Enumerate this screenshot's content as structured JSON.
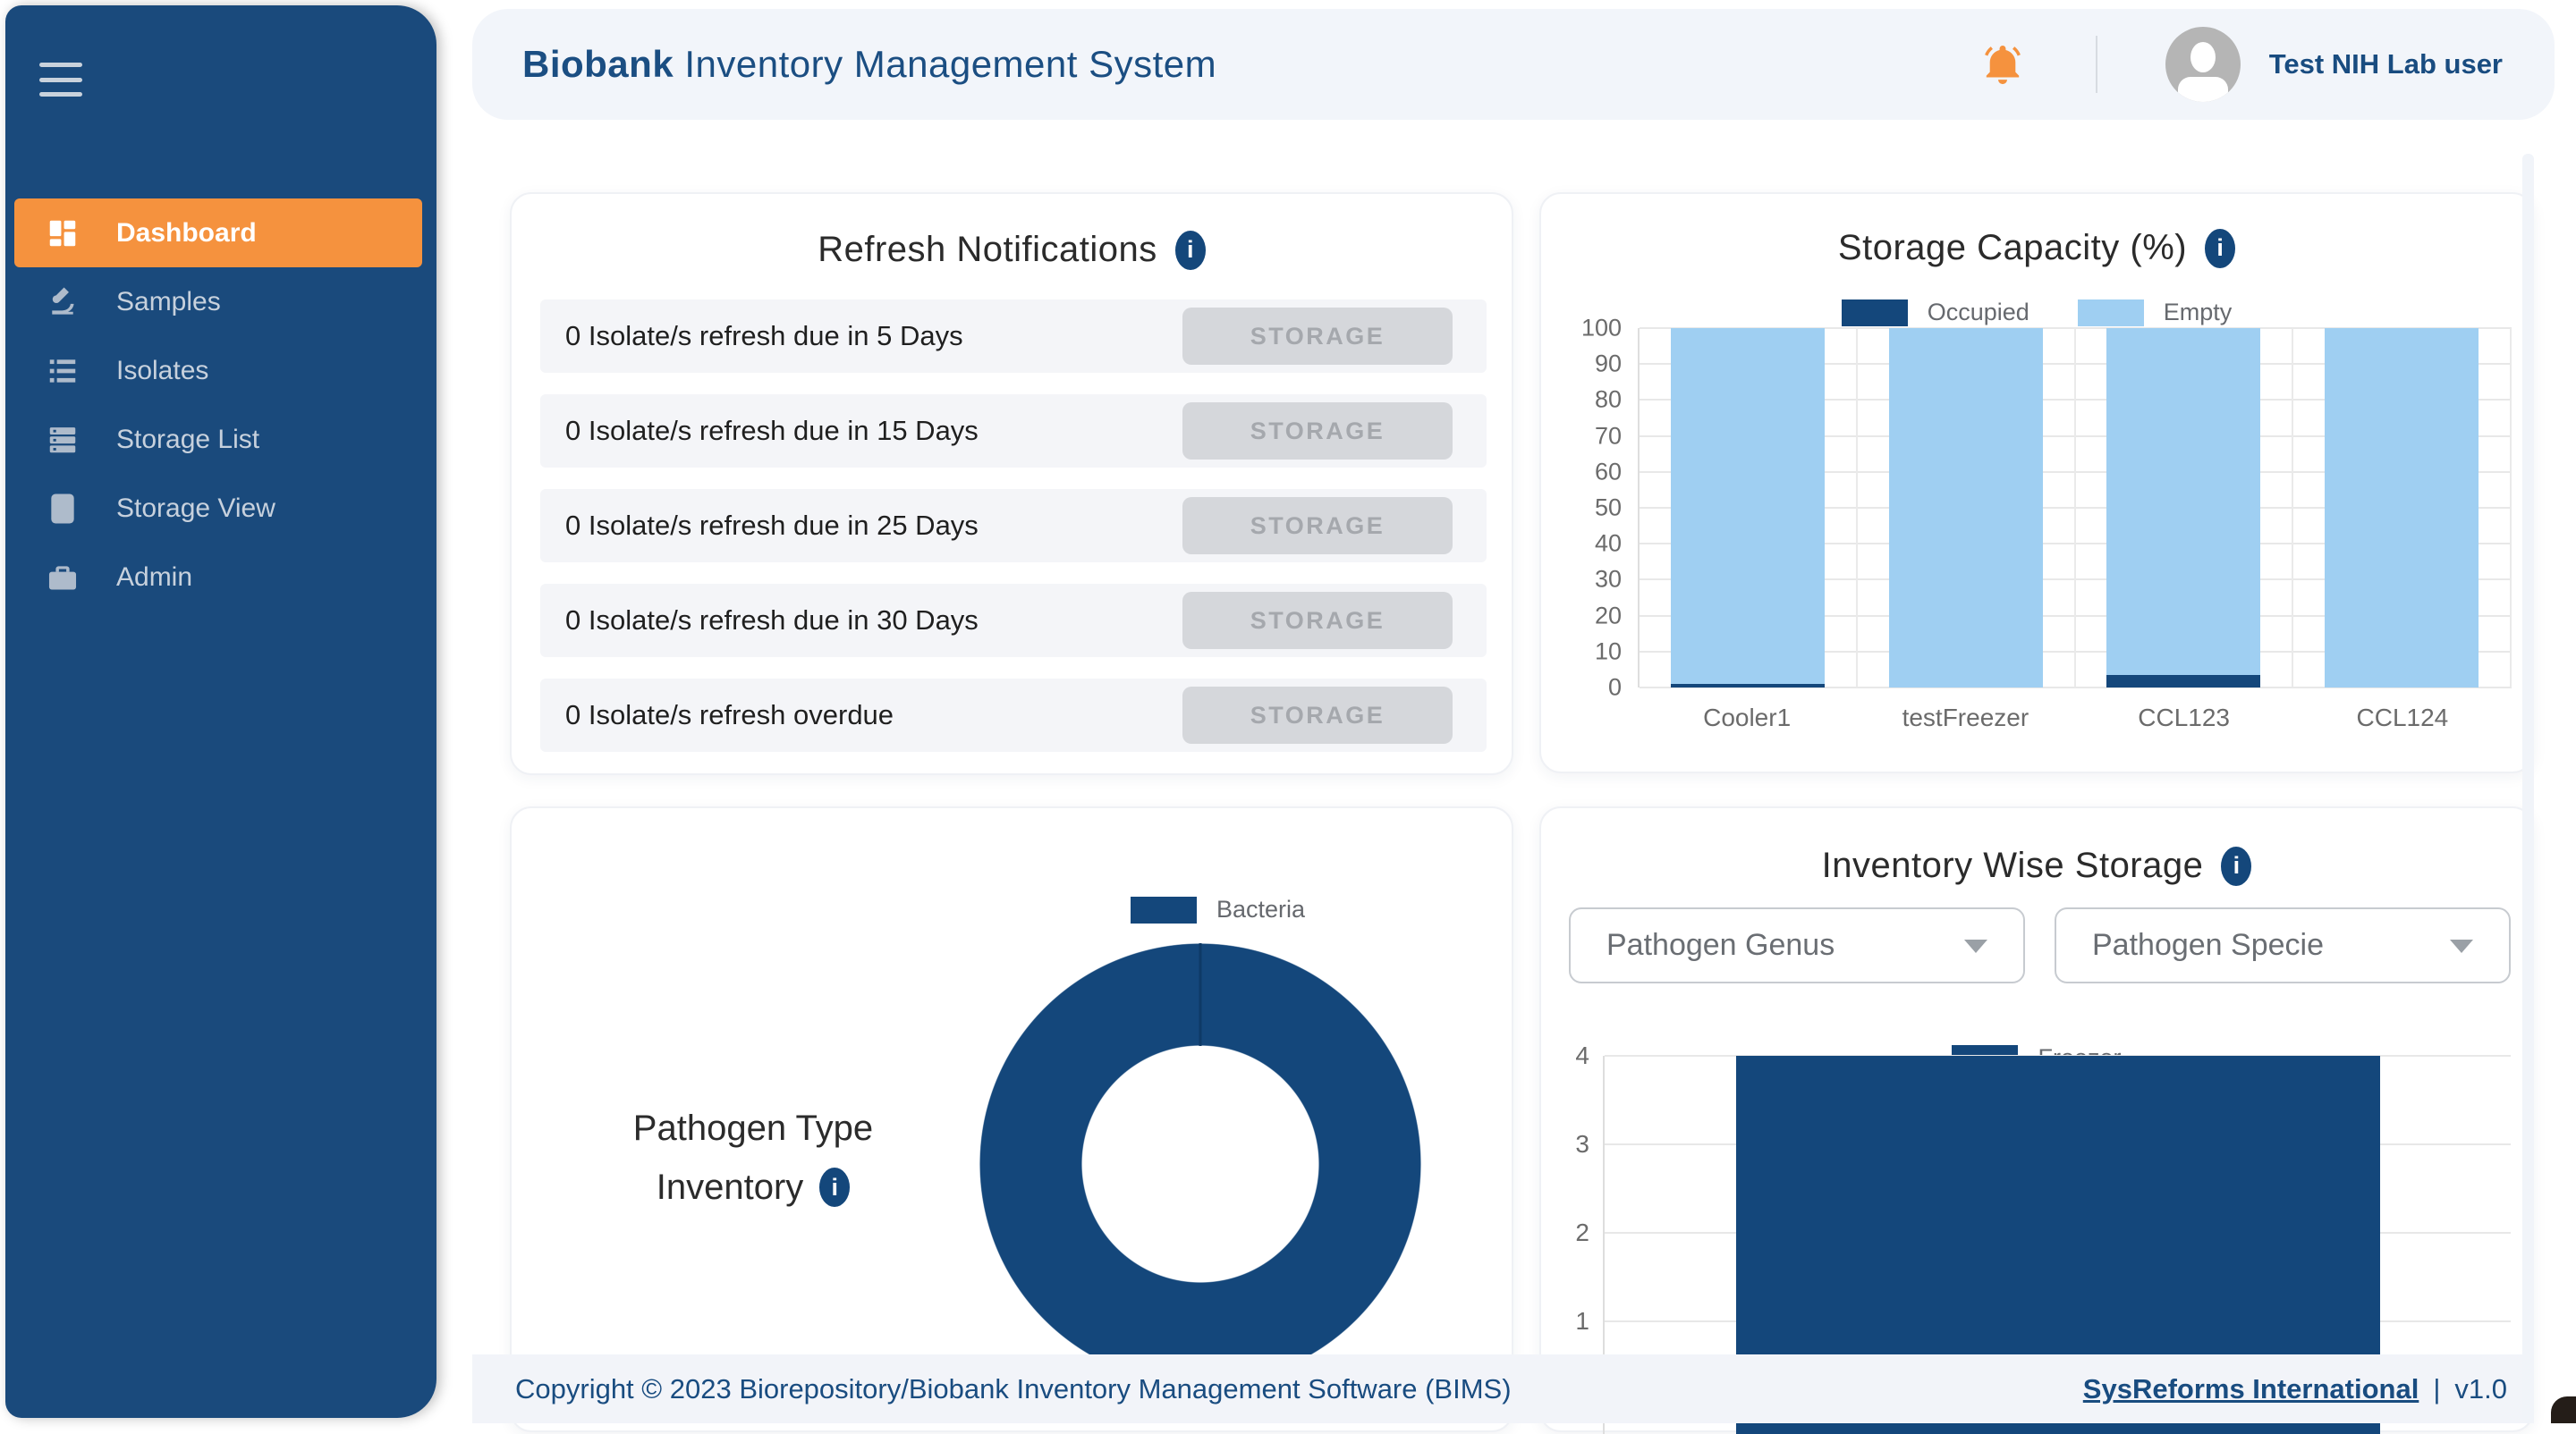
{
  "app": {
    "title_bold": "Biobank",
    "title_rest": " Inventory Management System",
    "user_name": "Test NIH Lab user"
  },
  "sidebar": {
    "items": [
      {
        "label": "Dashboard",
        "active": true
      },
      {
        "label": "Samples",
        "active": false
      },
      {
        "label": "Isolates",
        "active": false
      },
      {
        "label": "Storage List",
        "active": false
      },
      {
        "label": "Storage View",
        "active": false
      },
      {
        "label": "Admin",
        "active": false
      }
    ]
  },
  "notifications": {
    "title": "Refresh Notifications",
    "rows": [
      {
        "text": "0 Isolate/s refresh due in 5 Days",
        "button": "STORAGE"
      },
      {
        "text": "0 Isolate/s refresh due in 15 Days",
        "button": "STORAGE"
      },
      {
        "text": "0 Isolate/s refresh due in 25 Days",
        "button": "STORAGE"
      },
      {
        "text": "0 Isolate/s refresh due in 30 Days",
        "button": "STORAGE"
      },
      {
        "text": "0 Isolate/s refresh overdue",
        "button": "STORAGE"
      }
    ]
  },
  "capacity_card": {
    "title": "Storage Capacity (%)"
  },
  "pathogen_card": {
    "title_line1": "Pathogen Type",
    "title_line2": "Inventory"
  },
  "inventory_card": {
    "title": "Inventory Wise Storage",
    "filters": [
      {
        "label": "Pathogen Genus"
      },
      {
        "label": "Pathogen Specie"
      }
    ]
  },
  "footer": {
    "copyright": "Copyright © 2023 Biorepository/Biobank Inventory Management Software (BIMS)",
    "link": "SysReforms International",
    "separator": "|",
    "version": "v1.0"
  },
  "colors": {
    "navy": "#14477B",
    "light_blue": "#9FCFF2",
    "accent_orange": "#F5923E",
    "sidebar_bg": "#1A4A7C",
    "header_bg": "#F2F5FA",
    "seam": "#0E3A66"
  },
  "chart_data": [
    {
      "id": "storage_capacity",
      "type": "bar",
      "stacked": true,
      "title": "Storage Capacity (%)",
      "categories": [
        "Cooler1",
        "testFreezer",
        "CCL123",
        "CCL124"
      ],
      "series": [
        {
          "name": "Occupied",
          "color": "#14477B",
          "values": [
            1,
            0,
            3.5,
            0
          ]
        },
        {
          "name": "Empty",
          "color": "#9FCFF2",
          "values": [
            99,
            100,
            96.5,
            100
          ]
        }
      ],
      "ylim": [
        0,
        100
      ],
      "yticks": [
        0,
        10,
        20,
        30,
        40,
        50,
        60,
        70,
        80,
        90,
        100
      ],
      "grid": true,
      "legend_position": "top"
    },
    {
      "id": "pathogen_type",
      "type": "pie",
      "donut": true,
      "title": "Pathogen Type Inventory",
      "labels": [
        "Bacteria"
      ],
      "values": [
        100
      ],
      "colors": [
        "#14477B"
      ],
      "legend_position": "top"
    },
    {
      "id": "inventory_wise",
      "type": "bar",
      "title": "Inventory Wise Storage",
      "categories": [
        "Freezer"
      ],
      "series": [
        {
          "name": "Freezer",
          "color": "#14477B",
          "values": [
            4
          ]
        }
      ],
      "ylim": [
        0,
        4
      ],
      "yticks": [
        0,
        1,
        2,
        3,
        4
      ],
      "visible_yticks": [
        4,
        3,
        2,
        1
      ],
      "grid": true,
      "legend_position": "top"
    }
  ]
}
